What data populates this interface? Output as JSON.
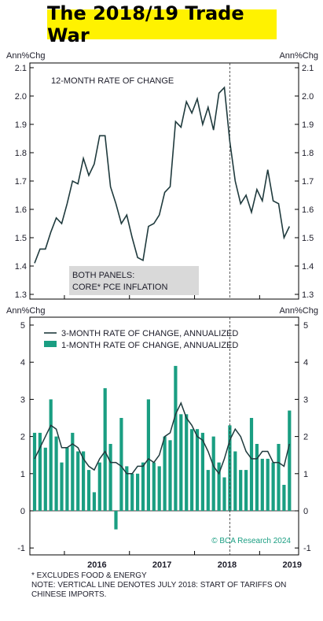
{
  "title": "The 2018/19 Trade War",
  "footnotes": [
    "* EXCLUDES FOOD & ENERGY",
    "NOTE: VERTICAL LINE DENOTES JULY 2018: START OF TARIFFS ON",
    "CHINESE IMPORTS."
  ],
  "watermark": "© BCA Research 2024",
  "colors": {
    "line": "#1f3a3d",
    "bar": "#1a9e82",
    "panel_label_bg": "#d9d9d9",
    "title_bg": "#fff200",
    "watermark": "#1a9e82"
  },
  "chart_data": [
    {
      "type": "line",
      "panel": "top",
      "ylabel_left": "Ann%Chg",
      "ylabel_right": "Ann%Chg",
      "ylim": [
        1.3,
        2.1
      ],
      "yticks": [
        "1.3",
        "1.4",
        "1.5",
        "1.6",
        "1.7",
        "1.8",
        "1.9",
        "2.0",
        "2.1"
      ],
      "annotation": "12-MONTH RATE OF CHANGE",
      "panel_label": [
        "BOTH PANELS:",
        "CORE* PCE INFLATION"
      ],
      "vline": "2018-07",
      "x_start": "2015-07",
      "series": [
        {
          "values": [
            1.41,
            1.46,
            1.46,
            1.52,
            1.57,
            1.55,
            1.62,
            1.7,
            1.69,
            1.78,
            1.72,
            1.76,
            1.86,
            1.86,
            1.68,
            1.62,
            1.55,
            1.58,
            1.5,
            1.43,
            1.42,
            1.54,
            1.55,
            1.58,
            1.66,
            1.68,
            1.91,
            1.89,
            1.98,
            1.94,
            1.99,
            1.9,
            1.96,
            1.88,
            2.01,
            2.03,
            1.84,
            1.7,
            1.62,
            1.65,
            1.59,
            1.67,
            1.63,
            1.74,
            1.63,
            1.62,
            1.5,
            1.54
          ]
        }
      ]
    },
    {
      "type": "bar",
      "panel": "bottom",
      "ylabel_left": "Ann%Chg",
      "ylabel_right": "Ann%Chg",
      "ylim": [
        -1.1,
        5.2
      ],
      "yticks": [
        "-1",
        "0",
        "1",
        "2",
        "3",
        "4",
        "5"
      ],
      "x_start": "2015-07",
      "x_tick_labels": [
        "2016",
        "2017",
        "2018",
        "2019"
      ],
      "vline": "2018-07",
      "legend": [
        "3-MONTH RATE OF CHANGE, ANNUALIZED",
        "1-MONTH RATE OF CHANGE, ANNUALIZED"
      ],
      "series": [
        {
          "name": "1-MONTH RATE OF CHANGE, ANNUALIZED",
          "kind": "bar",
          "values": [
            2.1,
            2.1,
            1.7,
            3.0,
            2.0,
            1.3,
            1.7,
            2.1,
            1.6,
            1.6,
            1.1,
            0.5,
            1.3,
            3.3,
            1.8,
            -0.5,
            2.5,
            1.2,
            1.0,
            1.0,
            1.3,
            3.0,
            1.3,
            1.2,
            2.0,
            1.9,
            3.9,
            2.6,
            2.6,
            2.2,
            2.2,
            2.1,
            1.1,
            2.0,
            1.3,
            0.9,
            2.3,
            1.6,
            1.1,
            1.1,
            2.5,
            1.8,
            1.4,
            1.4,
            1.3,
            1.8,
            0.7,
            2.7
          ]
        },
        {
          "name": "3-MONTH RATE OF CHANGE, ANNUALIZED",
          "kind": "line",
          "values": [
            1.4,
            1.7,
            2.0,
            2.3,
            2.2,
            1.7,
            1.7,
            1.8,
            1.7,
            1.4,
            1.2,
            1.1,
            1.4,
            1.6,
            1.3,
            1.3,
            1.2,
            1.0,
            1.0,
            1.2,
            1.2,
            1.4,
            1.3,
            1.5,
            2.0,
            2.1,
            2.6,
            2.9,
            2.5,
            2.3,
            2.0,
            1.9,
            1.6,
            1.2,
            1.0,
            1.4,
            1.9,
            2.2,
            2.0,
            1.6,
            1.4,
            1.4,
            1.6,
            1.6,
            1.3,
            1.3,
            1.2,
            1.8
          ]
        }
      ]
    }
  ]
}
